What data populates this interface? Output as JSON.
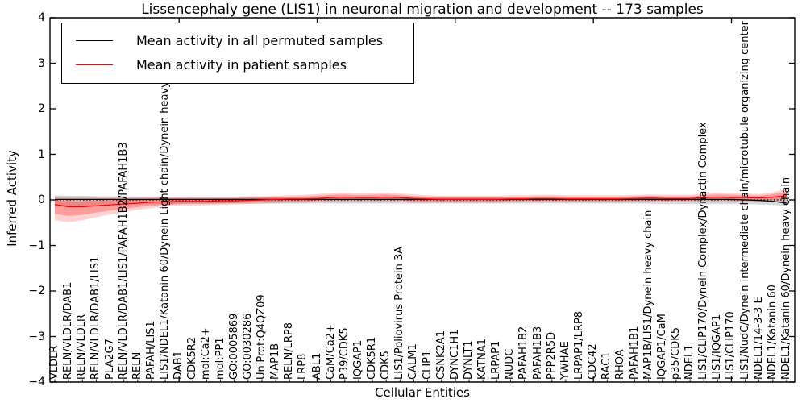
{
  "chart_data": {
    "type": "line",
    "title": "Lissencephaly gene (LIS1) in neuronal migration and development -- 173 samples",
    "xlabel": "Cellular Entities",
    "ylabel": "Inferred Activity",
    "ylim": [
      -4,
      4
    ],
    "yticks": [
      4,
      3,
      2,
      1,
      0,
      -1,
      -2,
      -3,
      -4
    ],
    "ytick_labels": [
      "4",
      "3",
      "2",
      "1",
      "0",
      "−1",
      "−2",
      "−3",
      "−4"
    ],
    "grid": false,
    "legend_position": "upper left",
    "zero_line": {
      "y": 0,
      "style": "dotted",
      "color": "#000000"
    },
    "legend": [
      {
        "label": "Mean activity in all permuted samples",
        "color": "#000000"
      },
      {
        "label": "Mean activity in patient samples",
        "color": "#ff0000"
      }
    ],
    "categories": [
      "VLDLR",
      "RELN/VLDLR/DAB1",
      "RELN/VLDLR",
      "RELN/VLDLR/DAB1/LIS1",
      "PLA2G7",
      "RELN/VLDLR/DAB1/LIS1/PAFAH1B2/PAFAH1B3",
      "RELN",
      "PAFAH/LIS1",
      "LIS1/NDEL1/Katanin 60/Dynein Light chain/Dynein heavy chain",
      "DAB1",
      "CDK5R2",
      "mol:Ca2+",
      "mol:PP1",
      "GO:0005869",
      "GO:0030286",
      "UniProt:Q4QZ09",
      "MAP1B",
      "RELN/LRP8",
      "LRP8",
      "ABL1",
      "CaM/Ca2+",
      "P39/CDK5",
      "IQGAP1",
      "CDK5R1",
      "CDK5",
      "LIS1/Poliovirus Protein 3A",
      "CALM1",
      "CLIP1",
      "CSNK2A1",
      "DYNC1H1",
      "DYNLT1",
      "KATNA1",
      "LRPAP1",
      "NUDC",
      "PAFAH1B2",
      "PAFAH1B3",
      "PPP2R5D",
      "YWHAE",
      "LRPAP1/LRP8",
      "CDC42",
      "RAC1",
      "RHOA",
      "PAFAH1B1",
      "MAP1B/LIS1/Dynein heavy chain",
      "IQGAP1/CaM",
      "p35/CDK5",
      "NDEL1",
      "LIS1/CLIP170/Dynein Complex/Dynactin Complex",
      "LIS1/IQGAP1",
      "LIS1/CLIP170",
      "LIS1/NudC/Dynein intermediate chain/microtubule organizing center",
      "NDEL1/14-3-3 E",
      "NDEL1/Katanin 60",
      "NDEL1/Katanin 60/Dynein heavy chain"
    ],
    "series": [
      {
        "name": "Mean activity in all permuted samples",
        "color": "#000000",
        "band_color": "rgba(0,0,0,0.15)",
        "values": [
          0.01,
          0.01,
          0.01,
          0.01,
          0.01,
          0.01,
          0.01,
          0.01,
          0.01,
          0.01,
          0.01,
          0.01,
          0.01,
          0.01,
          0.01,
          0.01,
          0.01,
          0.01,
          0.01,
          0.01,
          0.01,
          0.01,
          0.01,
          0.01,
          0.01,
          0.01,
          0.01,
          0.01,
          0.01,
          0.01,
          0.01,
          0.01,
          0.01,
          0.01,
          0.01,
          0.01,
          0.01,
          0.01,
          0.01,
          0.01,
          0.01,
          0.01,
          0.01,
          0.01,
          0.01,
          0.01,
          0.01,
          0.01,
          0.01,
          0.01,
          0.0,
          -0.01,
          -0.03,
          -0.07
        ],
        "band_lo": [
          -0.15,
          -0.14,
          -0.13,
          -0.12,
          -0.11,
          -0.1,
          -0.1,
          -0.09,
          -0.09,
          -0.08,
          -0.08,
          -0.08,
          -0.08,
          -0.08,
          -0.08,
          -0.08,
          -0.08,
          -0.08,
          -0.08,
          -0.08,
          -0.08,
          -0.08,
          -0.08,
          -0.08,
          -0.08,
          -0.08,
          -0.08,
          -0.08,
          -0.08,
          -0.08,
          -0.08,
          -0.08,
          -0.08,
          -0.08,
          -0.08,
          -0.08,
          -0.08,
          -0.08,
          -0.08,
          -0.08,
          -0.08,
          -0.08,
          -0.08,
          -0.08,
          -0.09,
          -0.09,
          -0.09,
          -0.09,
          -0.09,
          -0.09,
          -0.09,
          -0.1,
          -0.11,
          -0.13
        ],
        "band_hi": [
          0.1,
          0.09,
          0.09,
          0.08,
          0.08,
          0.08,
          0.07,
          0.07,
          0.07,
          0.07,
          0.07,
          0.07,
          0.07,
          0.07,
          0.07,
          0.07,
          0.07,
          0.07,
          0.07,
          0.07,
          0.07,
          0.07,
          0.07,
          0.07,
          0.07,
          0.07,
          0.07,
          0.07,
          0.07,
          0.07,
          0.07,
          0.07,
          0.07,
          0.07,
          0.07,
          0.07,
          0.07,
          0.07,
          0.07,
          0.07,
          0.07,
          0.07,
          0.07,
          0.07,
          0.07,
          0.07,
          0.07,
          0.07,
          0.06,
          0.06,
          0.06,
          0.06,
          0.05,
          0.04
        ]
      },
      {
        "name": "Mean activity in patient samples",
        "color": "#ff0000",
        "band_color": "rgba(255,0,0,0.18)",
        "inner_band_scale": 0.6,
        "values": [
          -0.1,
          -0.15,
          -0.15,
          -0.13,
          -0.11,
          -0.09,
          -0.07,
          -0.05,
          -0.04,
          -0.03,
          -0.03,
          -0.03,
          -0.02,
          -0.02,
          -0.01,
          0.0,
          0.01,
          0.02,
          0.02,
          0.03,
          0.05,
          0.06,
          0.05,
          0.05,
          0.06,
          0.05,
          0.03,
          0.02,
          0.01,
          0.01,
          0.01,
          0.01,
          0.01,
          0.02,
          0.02,
          0.03,
          0.03,
          0.02,
          0.02,
          0.02,
          0.02,
          0.02,
          0.03,
          0.04,
          0.03,
          0.03,
          0.03,
          0.05,
          0.06,
          0.05,
          0.05,
          0.04,
          0.06,
          0.09
        ],
        "band_lo": [
          -0.45,
          -0.49,
          -0.45,
          -0.38,
          -0.32,
          -0.27,
          -0.22,
          -0.18,
          -0.15,
          -0.13,
          -0.12,
          -0.12,
          -0.11,
          -0.1,
          -0.09,
          -0.08,
          -0.07,
          -0.06,
          -0.06,
          -0.05,
          -0.04,
          -0.04,
          -0.04,
          -0.04,
          -0.04,
          -0.05,
          -0.06,
          -0.06,
          -0.06,
          -0.06,
          -0.06,
          -0.06,
          -0.06,
          -0.05,
          -0.05,
          -0.05,
          -0.05,
          -0.05,
          -0.05,
          -0.05,
          -0.05,
          -0.05,
          -0.04,
          -0.04,
          -0.05,
          -0.05,
          -0.04,
          -0.03,
          -0.03,
          -0.03,
          -0.04,
          -0.04,
          -0.03,
          -0.03
        ],
        "band_hi": [
          0.06,
          0.05,
          0.05,
          0.05,
          0.05,
          0.06,
          0.06,
          0.07,
          0.07,
          0.07,
          0.07,
          0.07,
          0.07,
          0.07,
          0.08,
          0.08,
          0.09,
          0.1,
          0.11,
          0.13,
          0.15,
          0.16,
          0.14,
          0.15,
          0.16,
          0.14,
          0.12,
          0.1,
          0.09,
          0.09,
          0.09,
          0.09,
          0.09,
          0.1,
          0.1,
          0.11,
          0.11,
          0.1,
          0.1,
          0.1,
          0.1,
          0.1,
          0.11,
          0.12,
          0.11,
          0.11,
          0.11,
          0.14,
          0.16,
          0.15,
          0.14,
          0.13,
          0.17,
          0.24
        ]
      }
    ]
  }
}
